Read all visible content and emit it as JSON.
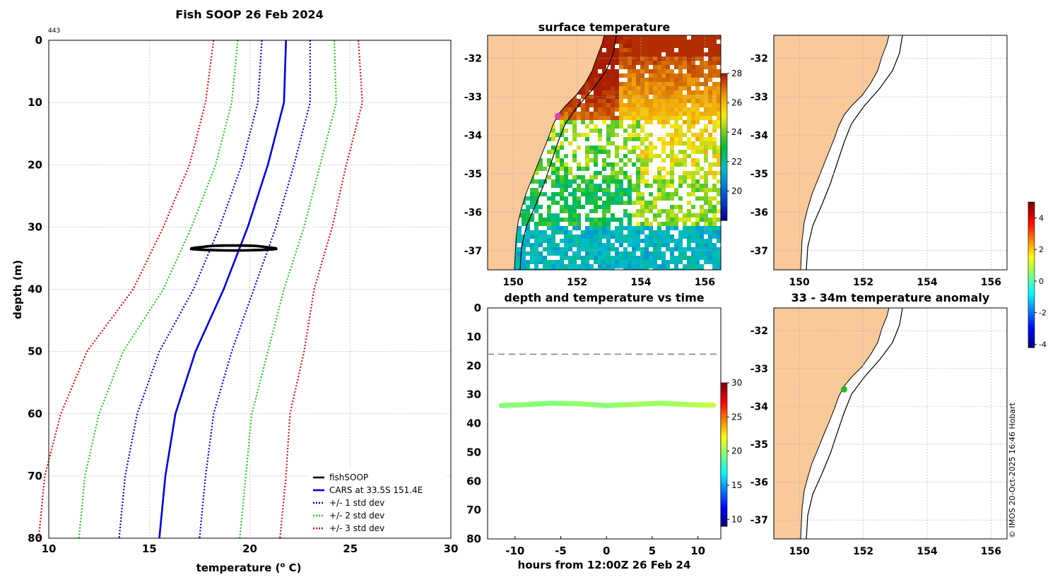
{
  "chart_data": [
    {
      "type": "line",
      "title": "Fish SOOP 26 Feb 2024",
      "corner_label": "443",
      "xlabel_main": "temperature (",
      "xlabel_sup": "o",
      "xlabel_tail": " C)",
      "ylabel": "depth (m)",
      "xlim": [
        10,
        30
      ],
      "ylim": [
        0,
        80
      ],
      "xticks": [
        10,
        15,
        20,
        25,
        30
      ],
      "yticks": [
        0,
        10,
        20,
        30,
        40,
        50,
        60,
        70,
        80
      ],
      "depths": [
        0,
        10,
        20,
        30,
        40,
        50,
        60,
        70,
        80
      ],
      "cars_mean": [
        21.8,
        21.7,
        20.9,
        19.9,
        18.7,
        17.3,
        16.3,
        15.8,
        15.5
      ],
      "std_dev": [
        1.2,
        1.3,
        1.3,
        1.4,
        1.5,
        1.8,
        1.9,
        2.0,
        2.0
      ],
      "fish_loop": {
        "center": [
          19.2,
          33.3
        ],
        "width": 4.0,
        "height": 0.8,
        "start": 17.6,
        "end": 21.2
      },
      "legend": [
        {
          "label": "fishSOOP",
          "color": "#000000",
          "style": "solid"
        },
        {
          "label": "CARS at 33.5S 151.4E",
          "color": "#0000dd",
          "style": "solid"
        },
        {
          "label": "+/- 1 std dev",
          "color": "#0000dd",
          "style": "dotted"
        },
        {
          "label": "+/- 2 std dev",
          "color": "#22cc22",
          "style": "dotted"
        },
        {
          "label": "+/- 3 std dev",
          "color": "#dd1111",
          "style": "dotted"
        }
      ]
    },
    {
      "type": "heatmap",
      "title": "surface temperature",
      "xlim": [
        149.2,
        156.5
      ],
      "ylim": [
        -37.5,
        -31.4
      ],
      "xticks": [
        150,
        152,
        154,
        156
      ],
      "yticks": [
        -32,
        -33,
        -34,
        -35,
        -36,
        -37
      ],
      "colorbar": {
        "min": 18,
        "max": 28,
        "ticks": [
          20,
          22,
          24,
          26,
          28
        ]
      },
      "marker": {
        "lon": 151.4,
        "lat": -33.5,
        "color": "#cc44cc"
      }
    },
    {
      "type": "scatter",
      "title": "depth and temperature vs time",
      "xlabel": "hours from 12:00Z 26 Feb 24",
      "xlim": [
        -13,
        12.5
      ],
      "ylim": [
        0,
        80
      ],
      "xticks": [
        -10,
        -5,
        0,
        5,
        10
      ],
      "yticks": [
        0,
        10,
        20,
        30,
        40,
        50,
        60,
        70,
        80
      ],
      "dashed_depth": 16,
      "series_hours": [
        -11.5,
        -9,
        -6,
        -3,
        0,
        3,
        6,
        9,
        11.8
      ],
      "series_depth": [
        33.8,
        33.5,
        33.0,
        33.2,
        33.8,
        33.4,
        33.0,
        33.5,
        33.7
      ],
      "series_temp": [
        19.5,
        19.8,
        19.5,
        20.0,
        19.6,
        20.2,
        20.0,
        20.4,
        21.0
      ],
      "colorbar": {
        "min": 9,
        "max": 30,
        "ticks": [
          10,
          15,
          20,
          25,
          30
        ]
      }
    },
    {
      "type": "scatter",
      "title": "",
      "xlim": [
        149.2,
        156.5
      ],
      "ylim": [
        -37.5,
        -31.4
      ],
      "xticks": [
        150,
        152,
        154,
        156
      ],
      "yticks": [
        -32,
        -33,
        -34,
        -35,
        -36,
        -37
      ]
    },
    {
      "type": "scatter",
      "title": "33 - 34m temperature anomaly",
      "xlim": [
        149.2,
        156.5
      ],
      "ylim": [
        -37.5,
        -31.4
      ],
      "xticks": [
        150,
        152,
        154,
        156
      ],
      "yticks": [
        -32,
        -33,
        -34,
        -35,
        -36,
        -37
      ],
      "marker": {
        "lon": 151.4,
        "lat": -33.55,
        "color": "#22bb22"
      },
      "colorbar": {
        "min": -4.2,
        "max": 5.0,
        "ticks": [
          -4,
          -2,
          0,
          2,
          4
        ]
      }
    }
  ],
  "footer": {
    "credit": "© IMOS 20-Oct-2025 16:46 Hobart"
  },
  "colors": {
    "land": "#f9c99a",
    "grid": "#b8b8b8",
    "coast": "#000000"
  }
}
